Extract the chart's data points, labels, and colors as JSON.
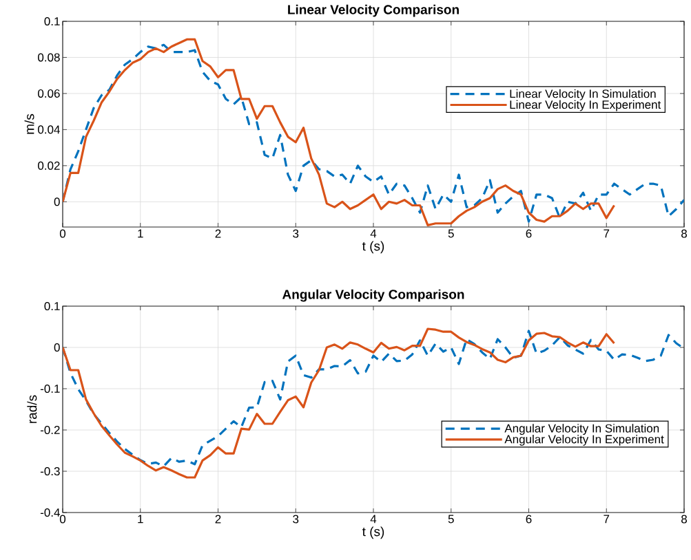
{
  "chart_data": [
    {
      "type": "line",
      "title": "Linear Velocity Comparison",
      "xlabel": "t (s)",
      "ylabel": "m/s",
      "x": [
        0,
        0.1,
        0.2,
        0.3,
        0.4,
        0.5,
        0.6,
        0.7,
        0.8,
        0.9,
        1,
        1.1,
        1.2,
        1.3,
        1.4,
        1.5,
        1.6,
        1.7,
        1.8,
        1.9,
        2,
        2.1,
        2.2,
        2.3,
        2.4,
        2.5,
        2.6,
        2.7,
        2.8,
        2.9,
        3,
        3.1,
        3.2,
        3.3,
        3.4,
        3.5,
        3.6,
        3.7,
        3.8,
        3.9,
        4,
        4.1,
        4.2,
        4.3,
        4.4,
        4.5,
        4.6,
        4.7,
        4.8,
        4.9,
        5,
        5.1,
        5.2,
        5.3,
        5.4,
        5.5,
        5.6,
        5.7,
        5.8,
        5.9,
        6,
        6.1,
        6.2,
        6.3,
        6.4,
        6.5,
        6.6,
        6.7,
        6.8,
        6.9,
        7,
        7.1,
        7.2,
        7.3,
        7.4,
        7.5,
        7.6,
        7.7,
        7.8,
        7.9,
        8
      ],
      "series": [
        {
          "name": "Linear Velocity In Simulation",
          "color": "#0072bd",
          "line_style": "dashed",
          "values": [
            0,
            0.018,
            0.028,
            0.04,
            0.052,
            0.059,
            0.062,
            0.07,
            0.076,
            0.079,
            0.083,
            0.086,
            0.085,
            0.087,
            0.083,
            0.083,
            0.083,
            0.084,
            0.072,
            0.067,
            0.065,
            0.057,
            0.054,
            0.058,
            0.043,
            0.044,
            0.026,
            0.024,
            0.037,
            0.015,
            0.006,
            0.02,
            0.023,
            0.018,
            0.017,
            0.014,
            0.015,
            0.01,
            0.02,
            0.014,
            0.011,
            0.014,
            0.004,
            0.01,
            0.009,
            0.002,
            -0.006,
            0.009,
            -0.004,
            0.004,
            0,
            0.015,
            -0.003,
            -0.002,
            0.002,
            0.012,
            -0.006,
            -0.001,
            0.003,
            0.006,
            -0.011,
            0.004,
            0.004,
            0.002,
            -0.009,
            0,
            -0.001,
            0.005,
            -0.005,
            0.004,
            0.004,
            0.01,
            0.007,
            0.004,
            0.007,
            0.01,
            0.01,
            0.009,
            -0.008,
            -0.004,
            0.001
          ]
        },
        {
          "name": "Linear Velocity In Experiment",
          "color": "#d95319",
          "line_style": "solid",
          "values": [
            0,
            0.016,
            0.016,
            0.036,
            0.045,
            0.055,
            0.061,
            0.068,
            0.073,
            0.077,
            0.079,
            0.083,
            0.085,
            0.083,
            0.086,
            0.088,
            0.09,
            0.09,
            0.078,
            0.075,
            0.069,
            0.073,
            0.073,
            0.057,
            0.057,
            0.046,
            0.053,
            0.053,
            0.044,
            0.036,
            0.033,
            0.041,
            0.024,
            0.015,
            -0.001,
            -0.003,
            0,
            -0.004,
            -0.002,
            0.001,
            0.004,
            -0.004,
            0,
            -0.001,
            0.001,
            -0.002,
            -0.002,
            -0.013,
            -0.012,
            -0.012,
            -0.012,
            -0.008,
            -0.005,
            -0.003,
            0,
            0.002,
            0.007,
            0.009,
            0.006,
            0.004,
            -0.006,
            -0.01,
            -0.011,
            -0.008,
            -0.008,
            -0.005,
            -0.001,
            -0.004,
            -0.001,
            -0.001,
            -0.009,
            -0.002,
            null,
            null,
            null,
            null,
            null,
            null,
            null,
            null,
            null
          ]
        }
      ],
      "xlim": [
        0,
        8
      ],
      "ylim": [
        -0.014,
        0.1
      ],
      "xticks": [
        0,
        1,
        2,
        3,
        4,
        5,
        6,
        7,
        8
      ],
      "yticks": [
        0,
        0.02,
        0.04,
        0.06,
        0.08,
        0.1
      ],
      "grid": true,
      "legend": "right"
    },
    {
      "type": "line",
      "title": "Angular Velocity Comparison",
      "xlabel": "t (s)",
      "ylabel": "rad/s",
      "x": [
        0,
        0.1,
        0.2,
        0.3,
        0.4,
        0.5,
        0.6,
        0.7,
        0.8,
        0.9,
        1,
        1.1,
        1.2,
        1.3,
        1.4,
        1.5,
        1.6,
        1.7,
        1.8,
        1.9,
        2,
        2.1,
        2.2,
        2.3,
        2.4,
        2.5,
        2.6,
        2.7,
        2.8,
        2.9,
        3,
        3.1,
        3.2,
        3.3,
        3.4,
        3.5,
        3.6,
        3.7,
        3.8,
        3.9,
        4,
        4.1,
        4.2,
        4.3,
        4.4,
        4.5,
        4.6,
        4.7,
        4.8,
        4.9,
        5,
        5.1,
        5.2,
        5.3,
        5.4,
        5.5,
        5.6,
        5.7,
        5.8,
        5.9,
        6,
        6.1,
        6.2,
        6.3,
        6.4,
        6.5,
        6.6,
        6.7,
        6.8,
        6.9,
        7,
        7.1,
        7.2,
        7.3,
        7.4,
        7.5,
        7.6,
        7.7,
        7.8,
        7.9,
        8
      ],
      "series": [
        {
          "name": "Angular Velocity In Simulation",
          "color": "#0072bd",
          "line_style": "dashed",
          "values": [
            0,
            -0.062,
            -0.101,
            -0.129,
            -0.162,
            -0.184,
            -0.207,
            -0.228,
            -0.246,
            -0.26,
            -0.273,
            -0.282,
            -0.279,
            -0.288,
            -0.268,
            -0.277,
            -0.274,
            -0.283,
            -0.237,
            -0.226,
            -0.215,
            -0.197,
            -0.179,
            -0.193,
            -0.146,
            -0.145,
            -0.084,
            -0.081,
            -0.126,
            -0.034,
            -0.02,
            -0.067,
            -0.073,
            -0.053,
            -0.053,
            -0.045,
            -0.046,
            -0.031,
            -0.063,
            -0.059,
            -0.02,
            -0.035,
            -0.015,
            -0.033,
            -0.032,
            -0.017,
            0.017,
            -0.02,
            0.009,
            -0.01,
            0,
            -0.04,
            0.02,
            0.008,
            -0.012,
            -0.028,
            0.02,
            0,
            -0.025,
            -0.02,
            0.04,
            -0.015,
            -0.008,
            0.005,
            0.025,
            0.005,
            -0.005,
            -0.015,
            0.018,
            -0.005,
            -0.008,
            -0.03,
            -0.017,
            -0.018,
            -0.025,
            -0.033,
            -0.03,
            -0.02,
            0.03,
            0.01,
            -0.003
          ]
        },
        {
          "name": "Angular Velocity In Experiment",
          "color": "#d95319",
          "line_style": "solid",
          "values": [
            0,
            -0.055,
            -0.055,
            -0.126,
            -0.16,
            -0.19,
            -0.213,
            -0.235,
            -0.255,
            -0.264,
            -0.274,
            -0.287,
            -0.298,
            -0.29,
            -0.298,
            -0.307,
            -0.315,
            -0.315,
            -0.274,
            -0.261,
            -0.242,
            -0.257,
            -0.257,
            -0.197,
            -0.199,
            -0.161,
            -0.185,
            -0.185,
            -0.156,
            -0.128,
            -0.119,
            -0.145,
            -0.085,
            -0.055,
            0,
            0.007,
            -0.003,
            0.012,
            0.007,
            -0.003,
            -0.012,
            0.011,
            -0.003,
            0.001,
            -0.007,
            0.004,
            0.004,
            0.045,
            0.043,
            0.038,
            0.038,
            0.024,
            0.013,
            0.006,
            -0.004,
            -0.012,
            -0.03,
            -0.036,
            -0.024,
            -0.02,
            0.017,
            0.033,
            0.035,
            0.027,
            0.025,
            0.012,
            0.002,
            0.012,
            0.003,
            0.003,
            0.032,
            0.01,
            null,
            null,
            null,
            null,
            null,
            null,
            null,
            null,
            null
          ]
        }
      ],
      "xlim": [
        0,
        8
      ],
      "ylim": [
        -0.4,
        0.1
      ],
      "xticks": [
        0,
        1,
        2,
        3,
        4,
        5,
        6,
        7,
        8
      ],
      "yticks": [
        -0.4,
        -0.3,
        -0.2,
        -0.1,
        0,
        0.1
      ],
      "grid": true,
      "legend": "bottom right"
    }
  ]
}
